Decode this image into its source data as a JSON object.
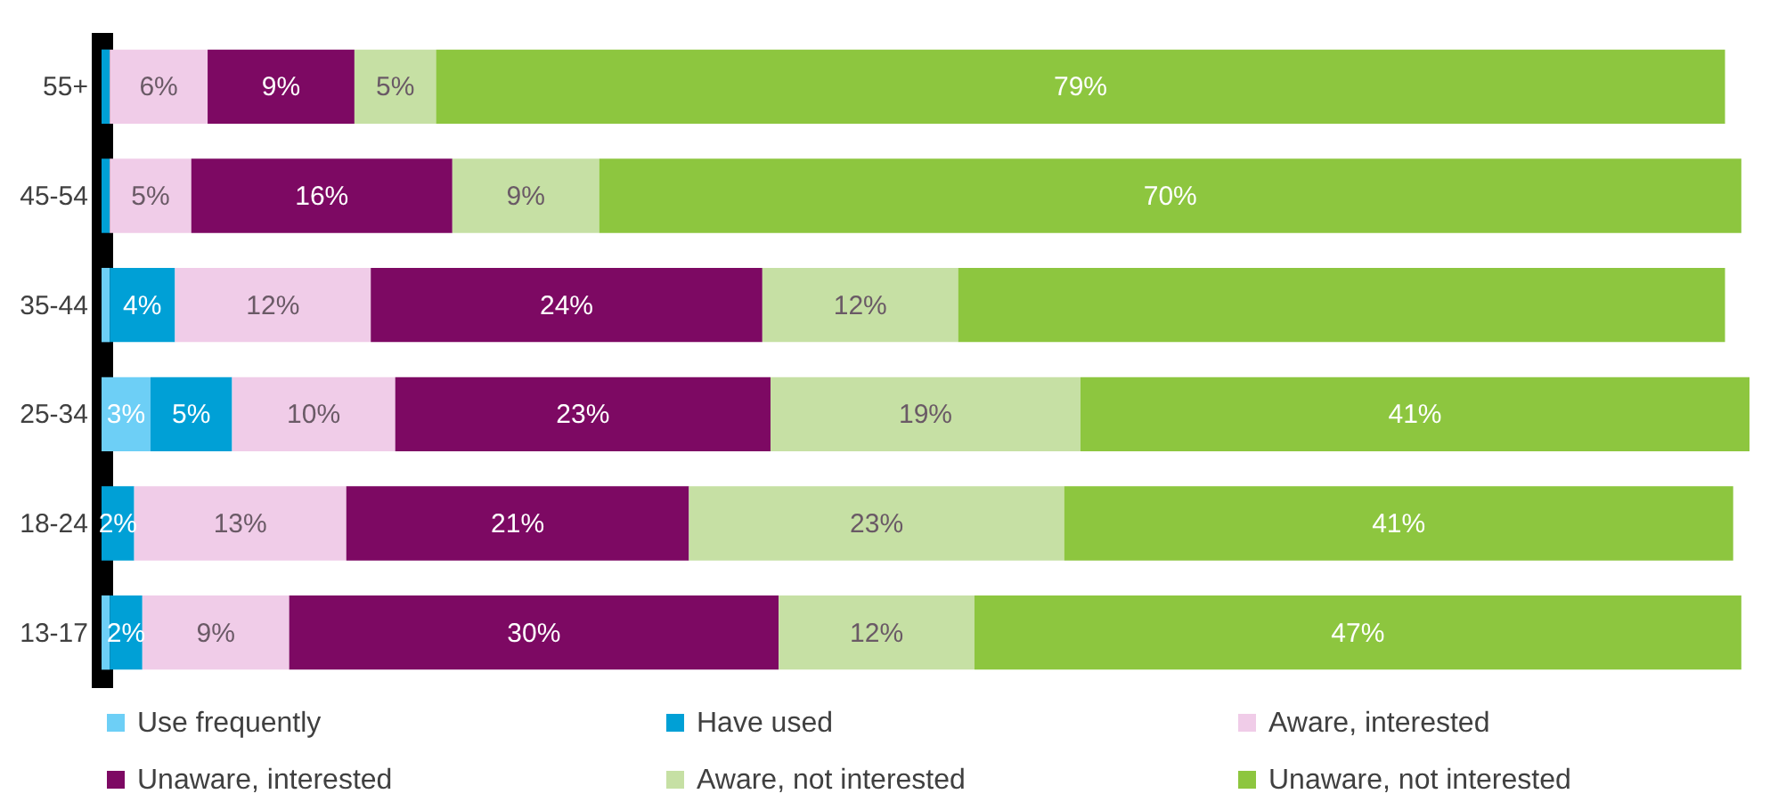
{
  "chart_data": {
    "type": "bar",
    "orientation": "horizontal",
    "stacked": true,
    "legend": "bottom",
    "categories": [
      "55+",
      "45-54",
      "35-44",
      "25-34",
      "18-24",
      "13-17"
    ],
    "series": [
      {
        "name": "Use frequently",
        "color": "#6dcff6",
        "values": [
          null,
          null,
          0.5,
          3,
          null,
          0.5
        ],
        "value_labels": [
          null,
          null,
          null,
          "3%",
          null,
          null
        ]
      },
      {
        "name": "Have used",
        "color": "#00a0d6",
        "values": [
          0.5,
          0.5,
          4,
          5,
          2,
          2
        ],
        "value_labels": [
          null,
          null,
          "4%",
          "5%",
          "2%",
          "2%"
        ]
      },
      {
        "name": "Aware, interested",
        "color": "#f0cce8",
        "values": [
          6,
          5,
          12,
          10,
          13,
          9
        ],
        "value_labels": [
          "6%",
          "5%",
          "12%",
          "10%",
          "13%",
          "9%"
        ]
      },
      {
        "name": "Unaware, interested",
        "color": "#7d0963",
        "values": [
          9,
          16,
          24,
          23,
          21,
          30
        ],
        "value_labels": [
          "9%",
          "16%",
          "24%",
          "23%",
          "21%",
          "30%"
        ]
      },
      {
        "name": "Aware, not interested",
        "color": "#c6e0a4",
        "values": [
          5,
          9,
          12,
          19,
          23,
          12
        ],
        "value_labels": [
          "5%",
          "9%",
          "12%",
          "19%",
          "23%",
          "12%"
        ]
      },
      {
        "name": "Unaware, not interested",
        "color": "#8dc63f",
        "values": [
          79,
          70,
          47,
          41,
          41,
          47
        ],
        "value_labels": [
          "79%",
          "70%",
          null,
          "41%",
          "41%",
          "47%"
        ]
      }
    ]
  }
}
